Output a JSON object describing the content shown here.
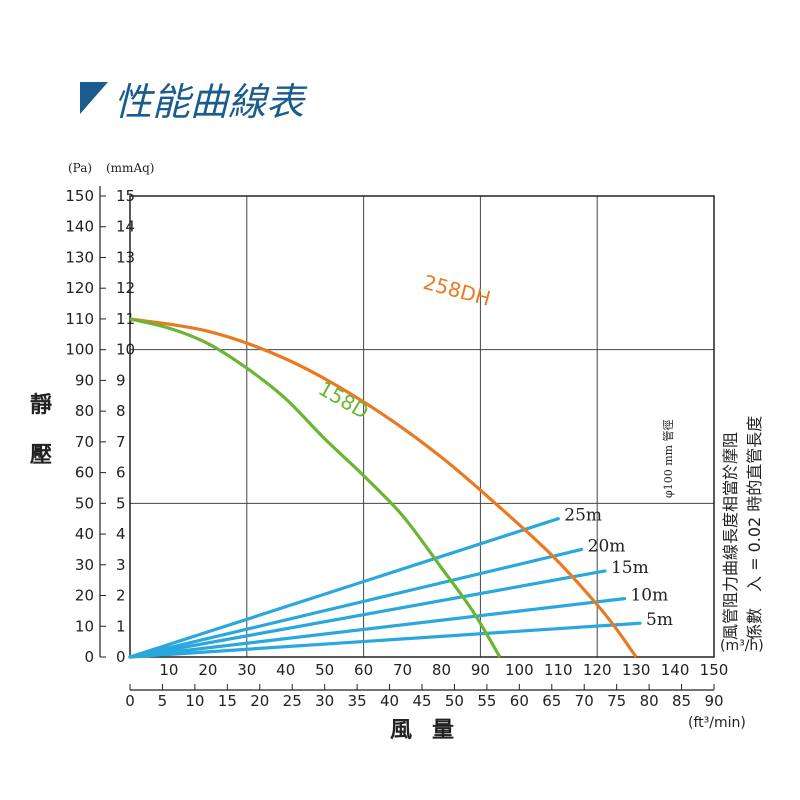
{
  "title": "性能曲線表",
  "colors": {
    "title": "#1a5c8c",
    "series_258DH": "#ea7a22",
    "series_158D": "#6ab532",
    "duct_lines": "#2aa7dd"
  },
  "chart_data": {
    "type": "line",
    "ylabel": "靜壓",
    "xlabel": "風量",
    "y_units": [
      "(Pa)",
      "(mmAq)"
    ],
    "x_units_primary": "(m³/h)",
    "x_units_secondary": "(ft³/min)",
    "y_ticks_pa": [
      "0",
      "10",
      "20",
      "30",
      "40",
      "50",
      "60",
      "70",
      "80",
      "90",
      "100",
      "110",
      "120",
      "130",
      "140",
      "150"
    ],
    "y_ticks_mmaq": [
      "0",
      "1",
      "2",
      "3",
      "4",
      "5",
      "6",
      "7",
      "8",
      "9",
      "10",
      "11",
      "12",
      "13",
      "14",
      "15"
    ],
    "x_ticks_m3h": [
      "0",
      "10",
      "20",
      "30",
      "40",
      "50",
      "60",
      "70",
      "80",
      "90",
      "100",
      "110",
      "120",
      "130",
      "140",
      "150"
    ],
    "x_ticks_cfm": [
      "0",
      "5",
      "10",
      "15",
      "20",
      "25",
      "30",
      "35",
      "40",
      "45",
      "50",
      "55",
      "60",
      "65",
      "70",
      "75",
      "80",
      "85",
      "90"
    ],
    "ylim": [
      0,
      150
    ],
    "xlim": [
      0,
      150
    ],
    "grid": true,
    "series": [
      {
        "name": "258DH",
        "x": [
          0,
          20,
          40,
          60,
          80,
          100,
          110,
          120,
          125,
          130
        ],
        "y": [
          110,
          106,
          97,
          83,
          65,
          43,
          31,
          17,
          9,
          0
        ]
      },
      {
        "name": "158D",
        "x": [
          0,
          10,
          20,
          30,
          40,
          50,
          60,
          70,
          80,
          88,
          95
        ],
        "y": [
          110,
          107,
          102,
          94,
          84,
          71,
          59,
          46,
          29,
          15,
          0
        ]
      }
    ],
    "duct_lines": [
      {
        "name": "25m",
        "x": [
          0,
          110
        ],
        "y": [
          0,
          45
        ]
      },
      {
        "name": "20m",
        "x": [
          0,
          116
        ],
        "y": [
          0,
          35
        ]
      },
      {
        "name": "15m",
        "x": [
          0,
          122
        ],
        "y": [
          0,
          28
        ]
      },
      {
        "name": "10m",
        "x": [
          0,
          127
        ],
        "y": [
          0,
          19
        ]
      },
      {
        "name": "5m",
        "x": [
          0,
          131
        ],
        "y": [
          0,
          11
        ]
      }
    ],
    "annotations": {
      "duct_note_line1": "風管阻力曲線長度相當於摩阻",
      "duct_note_line2": "係數　入 = 0.02 時的直管長度",
      "duct_diameter": "φ100 mm 管徑"
    }
  }
}
